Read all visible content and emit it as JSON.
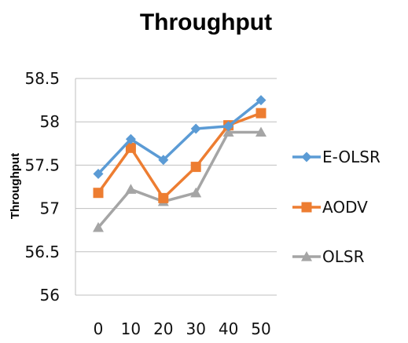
{
  "chart_data": {
    "type": "line",
    "title": "Throughput",
    "ylabel": "Throughput",
    "xlabel": "",
    "categories": [
      "0",
      "10",
      "20",
      "30",
      "40",
      "50"
    ],
    "ylim": [
      56,
      58.5
    ],
    "yticks": [
      "56",
      "56.5",
      "57",
      "57.5",
      "58",
      "58.5"
    ],
    "grid": true,
    "legend": "right",
    "series": [
      {
        "name": "E-OLSR",
        "values": [
          57.4,
          57.8,
          57.56,
          57.92,
          57.95,
          58.25
        ],
        "color": "#5b9bd5",
        "marker": "diamond"
      },
      {
        "name": "AODV",
        "values": [
          57.18,
          57.7,
          57.12,
          57.48,
          57.96,
          58.1
        ],
        "color": "#ed7d31",
        "marker": "square"
      },
      {
        "name": "OLSR",
        "values": [
          56.78,
          57.22,
          57.08,
          57.18,
          57.88,
          57.88
        ],
        "color": "#a5a5a5",
        "marker": "triangle"
      }
    ]
  }
}
